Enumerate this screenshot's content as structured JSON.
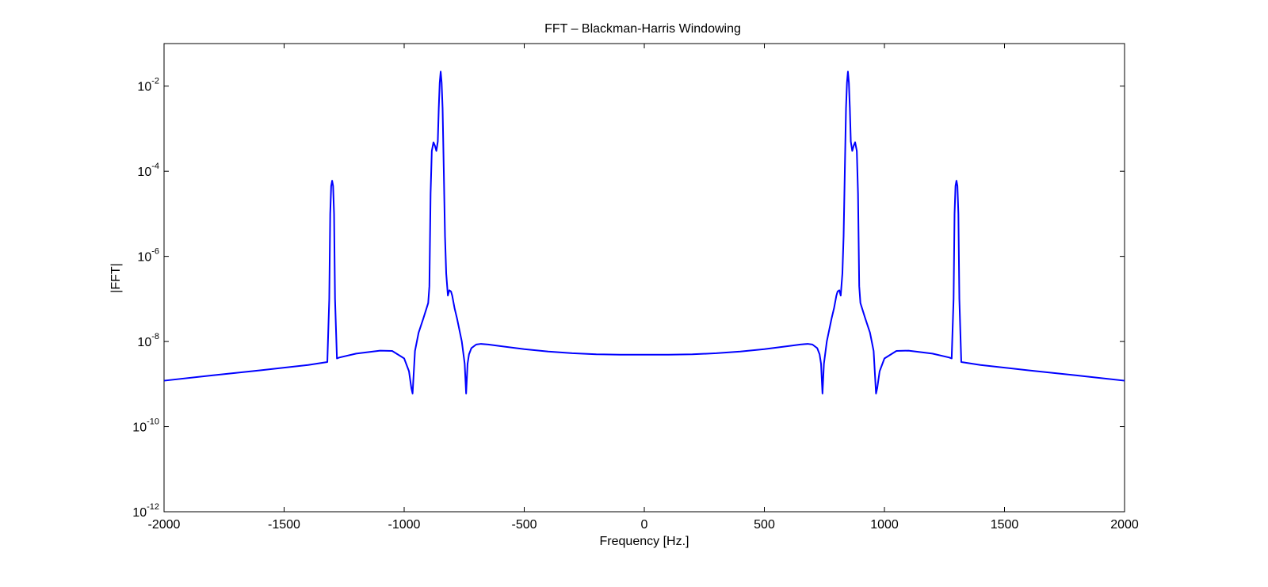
{
  "chart_data": {
    "type": "line",
    "title": "FFT – Blackman-Harris Windowing",
    "xlabel": "Frequency [Hz.]",
    "ylabel": "|FFT|",
    "xlim": [
      -2000,
      2000
    ],
    "ylim": [
      1e-12,
      0.1
    ],
    "yscale": "log",
    "grid": false,
    "legend": "none",
    "line_color": "#0000ff",
    "xticks": [
      -2000,
      -1500,
      -1000,
      -500,
      0,
      500,
      1000,
      1500,
      2000
    ],
    "xtick_labels": [
      "-2000",
      "-1500",
      "-1000",
      "-500",
      "0",
      "500",
      "1000",
      "1500",
      "2000"
    ],
    "yticks": [
      {
        "value": 1e-12,
        "base": "10",
        "exp": "-12"
      },
      {
        "value": 1e-10,
        "base": "10",
        "exp": "-10"
      },
      {
        "value": 1e-08,
        "base": "10",
        "exp": "-8"
      },
      {
        "value": 1e-06,
        "base": "10",
        "exp": "-6"
      },
      {
        "value": 0.0001,
        "base": "10",
        "exp": "-4"
      },
      {
        "value": 0.01,
        "base": "10",
        "exp": "-2"
      }
    ],
    "series": [
      {
        "x": [
          -2000,
          -1800,
          -1600,
          -1400,
          -1320,
          -1312,
          -1308,
          -1304,
          -1300,
          -1296,
          -1292,
          -1288,
          -1280,
          -1270,
          -1200,
          -1100,
          -1050,
          -1000,
          -980,
          -970,
          -965,
          -955,
          -940,
          -920,
          -900,
          -895,
          -890,
          -885,
          -878,
          -872,
          -866,
          -860,
          -856,
          -852,
          -848,
          -844,
          -840,
          -835,
          -830,
          -825,
          -818,
          -812,
          -805,
          -800,
          -790,
          -780,
          -760,
          -748,
          -742,
          -736,
          -730,
          -720,
          -700,
          -680,
          -650,
          -600,
          -500,
          -400,
          -300,
          -200,
          -100,
          0,
          100,
          200,
          300,
          400,
          500,
          600,
          650,
          680,
          700,
          720,
          730,
          736,
          742,
          748,
          760,
          780,
          790,
          800,
          805,
          812,
          818,
          825,
          830,
          835,
          840,
          844,
          848,
          852,
          856,
          860,
          866,
          872,
          878,
          885,
          890,
          895,
          900,
          920,
          940,
          955,
          965,
          970,
          980,
          1000,
          1050,
          1100,
          1200,
          1270,
          1280,
          1288,
          1292,
          1296,
          1300,
          1304,
          1308,
          1312,
          1320,
          1400,
          1600,
          1800,
          2000
        ],
        "y": [
          1.2e-09,
          1.6e-09,
          2.1e-09,
          2.8e-09,
          3.3e-09,
          1e-07,
          1e-05,
          4.5e-05,
          6e-05,
          4.5e-05,
          1e-05,
          1e-07,
          4e-09,
          4.2e-09,
          5.2e-09,
          6.1e-09,
          6e-09,
          4e-09,
          2e-09,
          8e-10,
          6e-10,
          6e-09,
          1.6e-08,
          3.5e-08,
          8e-08,
          2e-07,
          3e-05,
          0.0003,
          0.00048,
          0.0004,
          0.0003,
          0.0005,
          0.003,
          0.012,
          0.022,
          0.012,
          0.003,
          0.0001,
          3e-06,
          4e-07,
          1.2e-07,
          1.6e-07,
          1.5e-07,
          1.2e-07,
          6e-08,
          3.5e-08,
          1e-08,
          3e-09,
          6e-10,
          3e-09,
          5e-09,
          7e-09,
          8.5e-09,
          8.8e-09,
          8.5e-09,
          7.8e-09,
          6.6e-09,
          5.8e-09,
          5.3e-09,
          5e-09,
          4.9e-09,
          4.9e-09,
          4.9e-09,
          5e-09,
          5.3e-09,
          5.8e-09,
          6.6e-09,
          7.8e-09,
          8.5e-09,
          8.8e-09,
          8.5e-09,
          7e-09,
          5e-09,
          3e-09,
          6e-10,
          3e-09,
          1e-08,
          3.5e-08,
          6e-08,
          1.2e-07,
          1.5e-07,
          1.6e-07,
          1.2e-07,
          4e-07,
          3e-06,
          0.0001,
          0.003,
          0.012,
          0.022,
          0.012,
          0.003,
          0.0005,
          0.0003,
          0.0004,
          0.00048,
          0.0003,
          3e-05,
          2e-07,
          8e-08,
          3.5e-08,
          1.6e-08,
          6e-09,
          6e-10,
          8e-10,
          2e-09,
          4e-09,
          6e-09,
          6.1e-09,
          5.2e-09,
          4.2e-09,
          4e-09,
          1e-07,
          1e-05,
          4.5e-05,
          6e-05,
          4.5e-05,
          1e-05,
          1e-07,
          3.3e-09,
          2.8e-09,
          2.1e-09,
          1.6e-09,
          1.2e-09
        ]
      }
    ]
  }
}
